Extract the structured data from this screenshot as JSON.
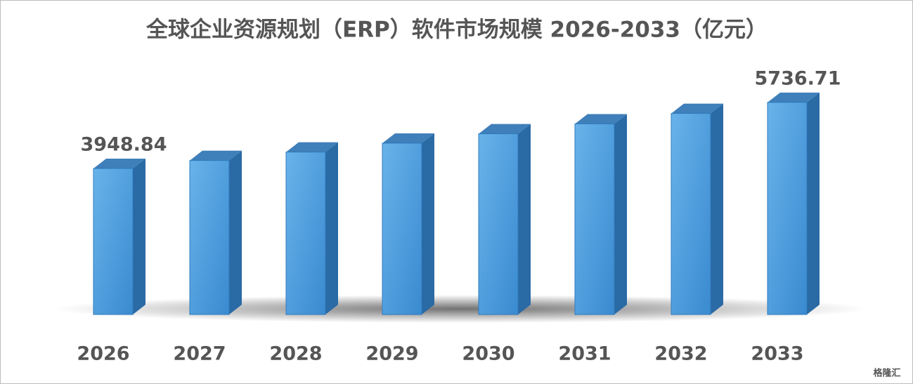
{
  "chart_data": {
    "type": "bar3d",
    "title": "全球企业资源规划（ERP）软件市场规模 2026-2033（亿元）",
    "categories": [
      "2026",
      "2027",
      "2028",
      "2029",
      "2030",
      "2031",
      "2032",
      "2033"
    ],
    "values": [
      3948.84,
      4165,
      4393,
      4634,
      4888,
      5156,
      5438,
      5736.71
    ],
    "value_labels": [
      "3948.84",
      null,
      null,
      null,
      null,
      null,
      null,
      "5736.71"
    ],
    "color": "#4a9fe0",
    "ylim": [
      0,
      6000
    ],
    "watermark": "格隆汇"
  }
}
